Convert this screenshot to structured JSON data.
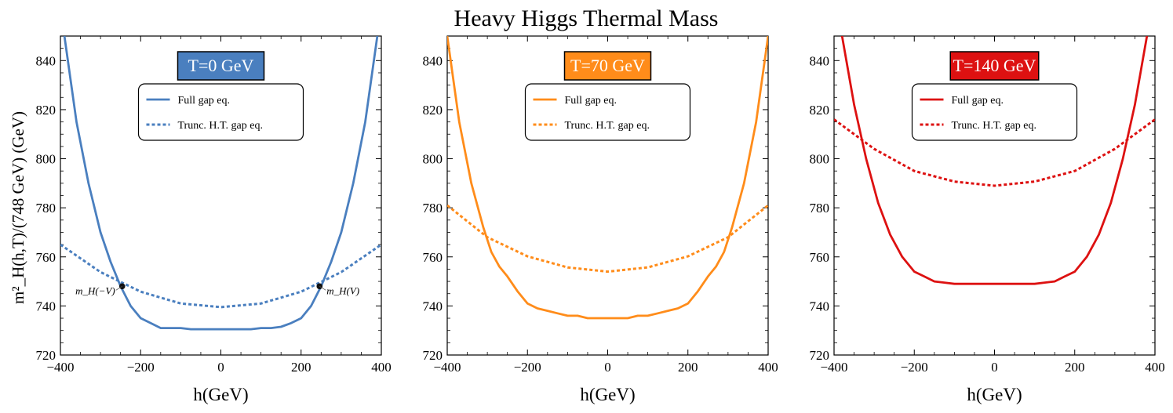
{
  "figure_title": "Heavy Higgs Thermal Mass",
  "y_axis_label": "m²_H(h,T)/(748 GeV) (GeV)",
  "legend": {
    "full": "Full gap eq.",
    "trunc": "Trunc. H.T. gap eq."
  },
  "chart_data": [
    {
      "type": "line",
      "badge": "T=0 GeV",
      "color": "#4a7fbf",
      "xlabel": "h(GeV)",
      "xlim": [
        -400,
        400
      ],
      "ylim": [
        720,
        850
      ],
      "xticks": [
        -400,
        -200,
        0,
        200,
        400
      ],
      "yticks": [
        720,
        740,
        760,
        780,
        800,
        820,
        840
      ],
      "series": [
        {
          "name": "Full gap eq.",
          "style": "solid",
          "x": [
            -390,
            -360,
            -330,
            -300,
            -275,
            -250,
            -225,
            -200,
            -175,
            -150,
            -125,
            -100,
            -75,
            -50,
            -25,
            0,
            25,
            50,
            75,
            100,
            125,
            150,
            175,
            200,
            225,
            250,
            275,
            300,
            330,
            360,
            390
          ],
          "y": [
            850,
            815,
            790,
            770,
            758,
            748,
            740,
            735,
            733,
            731,
            731,
            731,
            730.5,
            730.5,
            730.5,
            730.5,
            730.5,
            730.5,
            730.5,
            731,
            731,
            731.5,
            733,
            735,
            740,
            748,
            758,
            770,
            790,
            815,
            850
          ]
        },
        {
          "name": "Trunc. H.T. gap eq.",
          "style": "dashed",
          "x": [
            -400,
            -300,
            -200,
            -100,
            0,
            100,
            200,
            300,
            400
          ],
          "y": [
            765,
            753.8,
            745.8,
            741,
            739.5,
            741,
            745.8,
            753.8,
            765
          ]
        }
      ],
      "annotations": [
        {
          "label": "m_H(−V)",
          "x": -246,
          "y": 748,
          "side": "left"
        },
        {
          "label": "m_H(V)",
          "x": 246,
          "y": 748,
          "side": "right"
        }
      ]
    },
    {
      "type": "line",
      "badge": "T=70 GeV",
      "color": "#ff8c1a",
      "xlabel": "h(GeV)",
      "xlim": [
        -400,
        400
      ],
      "ylim": [
        720,
        850
      ],
      "xticks": [
        -400,
        -200,
        0,
        200,
        400
      ],
      "yticks": [
        720,
        740,
        760,
        780,
        800,
        820,
        840
      ],
      "series": [
        {
          "name": "Full gap eq.",
          "style": "solid",
          "x": [
            -400,
            -370,
            -340,
            -310,
            -290,
            -270,
            -250,
            -225,
            -200,
            -175,
            -150,
            -125,
            -100,
            -75,
            -50,
            -25,
            0,
            25,
            50,
            75,
            100,
            125,
            150,
            175,
            200,
            225,
            250,
            270,
            290,
            310,
            340,
            370,
            400
          ],
          "y": [
            850,
            815,
            790,
            772,
            762,
            756,
            752,
            746,
            741,
            739,
            738,
            737,
            736,
            736,
            735,
            735,
            735,
            735,
            735,
            736,
            736,
            737,
            738,
            739,
            741,
            746,
            752,
            756,
            762,
            772,
            790,
            815,
            850
          ]
        },
        {
          "name": "Trunc. H.T. gap eq.",
          "style": "dashed",
          "x": [
            -400,
            -300,
            -200,
            -100,
            0,
            100,
            200,
            300,
            400
          ],
          "y": [
            781,
            768,
            760.2,
            755.7,
            754,
            755.7,
            760.2,
            768,
            781
          ]
        }
      ]
    },
    {
      "type": "line",
      "badge": "T=140 GeV",
      "color": "#dd1111",
      "xlabel": "h(GeV)",
      "xlim": [
        -400,
        400
      ],
      "ylim": [
        720,
        850
      ],
      "xticks": [
        -400,
        -200,
        0,
        200,
        400
      ],
      "yticks": [
        720,
        740,
        760,
        780,
        800,
        820,
        840
      ],
      "series": [
        {
          "name": "Full gap eq.",
          "style": "solid",
          "x": [
            -380,
            -350,
            -320,
            -290,
            -260,
            -230,
            -200,
            -175,
            -150,
            -125,
            -100,
            -75,
            -50,
            -25,
            0,
            25,
            50,
            75,
            100,
            125,
            150,
            175,
            200,
            230,
            260,
            290,
            320,
            350,
            380
          ],
          "y": [
            850,
            822,
            800,
            782,
            769,
            760,
            754,
            752,
            750,
            749.5,
            749,
            749,
            749,
            749,
            749,
            749,
            749,
            749,
            749,
            749.5,
            750,
            752,
            754,
            760,
            769,
            782,
            800,
            822,
            850
          ]
        },
        {
          "name": "Trunc. H.T. gap eq.",
          "style": "dashed",
          "x": [
            -400,
            -300,
            -200,
            -100,
            0,
            100,
            200,
            300,
            400
          ],
          "y": [
            816,
            804,
            795,
            790.7,
            789,
            790.7,
            795,
            804,
            816
          ]
        }
      ]
    }
  ]
}
